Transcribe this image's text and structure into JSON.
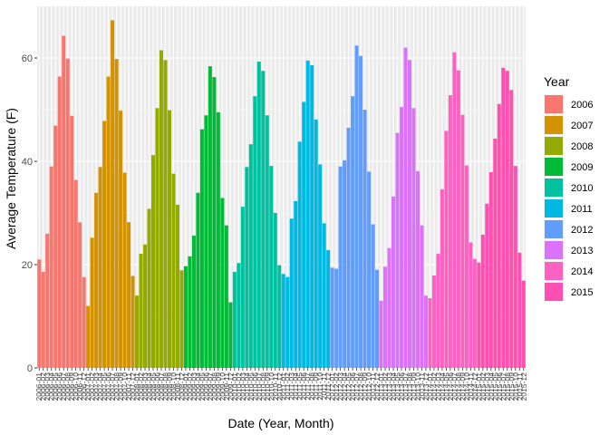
{
  "chart_data": {
    "type": "bar",
    "title": "",
    "xlabel": "Date (Year, Month)",
    "ylabel": "Average Temperature (F)",
    "ylim": [
      0,
      70
    ],
    "y_ticks": [
      0,
      20,
      40,
      60
    ],
    "grid": true,
    "legend": {
      "title": "Year",
      "placement": "right"
    },
    "series": [
      {
        "name": "2006",
        "color": "#F8766D",
        "categories": [
          "2006-01",
          "2006-02",
          "2006-03",
          "2006-04",
          "2006-05",
          "2006-06",
          "2006-07",
          "2006-08",
          "2006-09",
          "2006-10",
          "2006-11",
          "2006-12"
        ],
        "values": [
          21.0,
          18.6,
          26.0,
          39.0,
          46.9,
          56.4,
          64.3,
          59.9,
          48.8,
          36.4,
          28.2,
          17.6
        ]
      },
      {
        "name": "2007",
        "color": "#D39200",
        "categories": [
          "2007-01",
          "2007-02",
          "2007-03",
          "2007-04",
          "2007-05",
          "2007-06",
          "2007-07",
          "2007-08",
          "2007-09",
          "2007-10",
          "2007-11",
          "2007-12"
        ],
        "values": [
          12.0,
          25.2,
          33.9,
          38.9,
          47.8,
          56.4,
          67.3,
          59.8,
          49.8,
          37.8,
          28.2,
          17.8
        ]
      },
      {
        "name": "2008",
        "color": "#93AA00",
        "categories": [
          "2008-01",
          "2008-02",
          "2008-03",
          "2008-04",
          "2008-05",
          "2008-06",
          "2008-07",
          "2008-08",
          "2008-09",
          "2008-10",
          "2008-11",
          "2008-12"
        ],
        "values": [
          14.0,
          22.1,
          23.9,
          30.8,
          41.2,
          50.3,
          61.5,
          59.6,
          49.9,
          37.6,
          31.6,
          18.9
        ]
      },
      {
        "name": "2009",
        "color": "#00BA38",
        "categories": [
          "2009-01",
          "2009-02",
          "2009-03",
          "2009-04",
          "2009-05",
          "2009-06",
          "2009-07",
          "2009-08",
          "2009-09",
          "2009-10",
          "2009-11",
          "2009-12"
        ],
        "values": [
          19.7,
          21.6,
          25.6,
          33.9,
          46.2,
          48.9,
          58.4,
          56.3,
          49.5,
          32.9,
          27.6,
          12.7
        ]
      },
      {
        "name": "2010",
        "color": "#00C19F",
        "categories": [
          "2010-01",
          "2010-02",
          "2010-03",
          "2010-04",
          "2010-05",
          "2010-06",
          "2010-07",
          "2010-08",
          "2010-09",
          "2010-10",
          "2010-11",
          "2010-12"
        ],
        "values": [
          18.6,
          20.3,
          31.2,
          38.9,
          43.3,
          52.6,
          59.3,
          57.5,
          48.9,
          39.1,
          30.0,
          19.9
        ]
      },
      {
        "name": "2011",
        "color": "#00B9E3",
        "categories": [
          "2011-01",
          "2011-02",
          "2011-03",
          "2011-04",
          "2011-05",
          "2011-06",
          "2011-07",
          "2011-08",
          "2011-09",
          "2011-10",
          "2011-11",
          "2011-12"
        ],
        "values": [
          18.2,
          17.6,
          28.9,
          32.3,
          43.8,
          51.5,
          59.5,
          58.6,
          48.1,
          39.4,
          28.0,
          22.8
        ]
      },
      {
        "name": "2012",
        "color": "#619CFF",
        "categories": [
          "2012-01",
          "2012-02",
          "2012-03",
          "2012-04",
          "2012-05",
          "2012-06",
          "2012-07",
          "2012-08",
          "2012-09",
          "2012-10",
          "2012-11",
          "2012-12"
        ],
        "values": [
          19.4,
          19.2,
          39.0,
          40.2,
          46.5,
          52.6,
          62.4,
          60.4,
          50.0,
          38.0,
          27.8,
          19.0
        ]
      },
      {
        "name": "2013",
        "color": "#DB72FB",
        "categories": [
          "2013-01",
          "2013-02",
          "2013-03",
          "2013-04",
          "2013-05",
          "2013-06",
          "2013-07",
          "2013-08",
          "2013-09",
          "2013-10",
          "2013-11",
          "2013-12"
        ],
        "values": [
          13.0,
          19.6,
          23.2,
          33.2,
          45.5,
          50.5,
          62.0,
          59.6,
          50.3,
          38.1,
          27.6,
          14.0
        ]
      },
      {
        "name": "2014",
        "color": "#FF61C3",
        "categories": [
          "2014-01",
          "2014-02",
          "2014-03",
          "2014-04",
          "2014-05",
          "2014-06",
          "2014-07",
          "2014-08",
          "2014-09",
          "2014-10",
          "2014-11",
          "2014-12"
        ],
        "values": [
          13.5,
          17.9,
          22.1,
          34.6,
          45.9,
          52.8,
          61.1,
          57.6,
          49.0,
          39.2,
          24.3,
          21.1
        ]
      }
    ],
    "series_extra": [
      {
        "name": "2015",
        "color": "#FF4FB0",
        "categories": [
          "2015-01",
          "2015-02",
          "2015-03",
          "2015-04",
          "2015-05",
          "2015-06",
          "2015-07",
          "2015-08",
          "2015-09",
          "2015-10",
          "2015-11",
          "2015-12"
        ],
        "values": [
          20.4,
          25.8,
          31.8,
          37.9,
          44.4,
          51.1,
          58.1,
          57.5,
          53.8,
          39.1,
          22.3,
          16.9
        ]
      }
    ]
  }
}
